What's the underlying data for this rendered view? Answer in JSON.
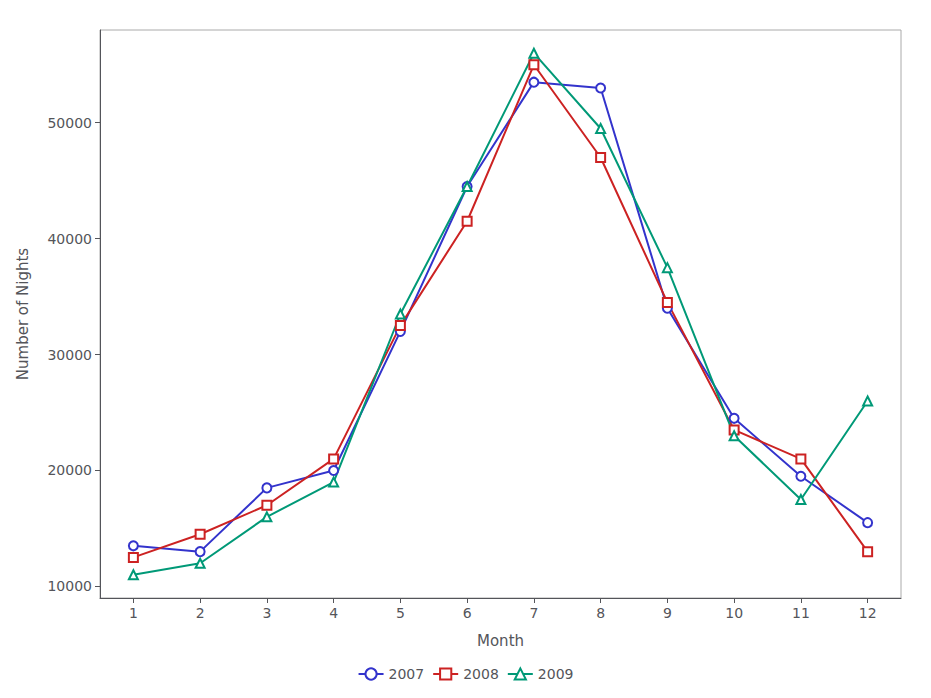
{
  "chart_data": {
    "type": "line",
    "xlabel": "Month",
    "ylabel": "Number of Nights",
    "x": [
      1,
      2,
      3,
      4,
      5,
      6,
      7,
      8,
      9,
      10,
      11,
      12
    ],
    "series": [
      {
        "name": "2007",
        "color": "#3333cc",
        "marker": "circle",
        "values": [
          13500,
          13000,
          18500,
          20000,
          32000,
          44500,
          53500,
          53000,
          34000,
          24500,
          19500,
          15500
        ]
      },
      {
        "name": "2008",
        "color": "#cc2222",
        "marker": "square",
        "values": [
          12500,
          14500,
          17000,
          21000,
          32500,
          41500,
          55000,
          47000,
          34500,
          23500,
          21000,
          13000
        ]
      },
      {
        "name": "2009",
        "color": "#009977",
        "marker": "triangle",
        "values": [
          11000,
          12000,
          16000,
          19000,
          33500,
          44500,
          56000,
          49500,
          37500,
          23000,
          17500,
          26000
        ]
      }
    ],
    "xlim": [
      0.5,
      12.5
    ],
    "ylim": [
      9000,
      58000
    ],
    "xticks": [
      1,
      2,
      3,
      4,
      5,
      6,
      7,
      8,
      9,
      10,
      11,
      12
    ],
    "yticks": [
      10000,
      20000,
      30000,
      40000,
      50000
    ],
    "grid": false,
    "legend": "bottom"
  }
}
